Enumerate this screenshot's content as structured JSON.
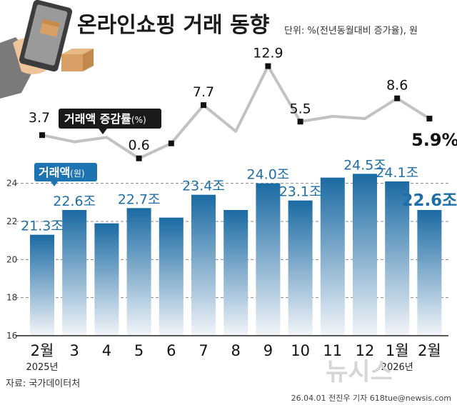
{
  "title": "온라인쇼핑 거래 동향",
  "unit_note": "단위: %(전년동월대비 증가율), 원",
  "line_tag": {
    "main": "거래액 증감률",
    "unit": "(%)"
  },
  "bar_tag": {
    "main": "거래액",
    "unit": "(원)"
  },
  "source": "자료: 국가데이터처",
  "credit": "26.04.01 전진우 기자 618tue@newsis.com",
  "watermark": "뉴시스",
  "colors": {
    "bar_top": "#1a6aa3",
    "bar_bottom": "#f2f5f9",
    "line": "#c2c2c2",
    "marker": "#111111",
    "tag_dark": "#1a1a1a",
    "tag_blue": "#1e74b0",
    "bar_label": "#1f6fa6"
  },
  "chart_data": [
    {
      "type": "bar",
      "title": "거래액",
      "unit": "조 원",
      "categories": [
        "2025-02",
        "2025-03",
        "2025-04",
        "2025-05",
        "2025-06",
        "2025-07",
        "2025-08",
        "2025-09",
        "2025-10",
        "2025-11",
        "2025-12",
        "2026-01",
        "2026-02"
      ],
      "x_tick_labels": [
        "2월",
        "3",
        "4",
        "5",
        "6",
        "7",
        "8",
        "9",
        "10",
        "11",
        "12",
        "1월",
        "2월"
      ],
      "x_sub_labels": [
        "2025년",
        "",
        "",
        "",
        "",
        "",
        "",
        "",
        "",
        "",
        "",
        "2026년",
        ""
      ],
      "values": [
        21.3,
        22.6,
        21.9,
        22.7,
        22.2,
        23.4,
        22.6,
        24.0,
        23.1,
        24.3,
        24.5,
        24.1,
        22.6
      ],
      "data_labels": [
        "21.3조",
        "22.6조",
        "",
        "22.7조",
        "",
        "23.4조",
        "",
        "24.0조",
        "23.1조",
        "",
        "24.5조",
        "24.1조",
        "22.6조"
      ],
      "ylim": [
        16,
        25
      ],
      "yticks": [
        16,
        18,
        20,
        22,
        24
      ],
      "grid": true,
      "legend": "none"
    },
    {
      "type": "line",
      "title": "거래액 증감률",
      "unit": "%",
      "categories": [
        "2025-02",
        "2025-03",
        "2025-04",
        "2025-05",
        "2025-06",
        "2025-07",
        "2025-08",
        "2025-09",
        "2025-10",
        "2025-11",
        "2025-12",
        "2026-01",
        "2026-02"
      ],
      "values": [
        3.7,
        2.8,
        3.4,
        0.6,
        2.6,
        7.7,
        4.2,
        12.9,
        5.5,
        6.2,
        5.9,
        8.6,
        5.9
      ],
      "data_labels": [
        "3.7",
        "",
        "",
        "0.6",
        "",
        "7.7",
        "",
        "12.9",
        "5.5",
        "",
        "",
        "8.6",
        "5.9%"
      ],
      "markers": [
        true,
        false,
        false,
        true,
        true,
        true,
        false,
        true,
        true,
        false,
        false,
        true,
        true
      ],
      "legend": "none"
    }
  ]
}
